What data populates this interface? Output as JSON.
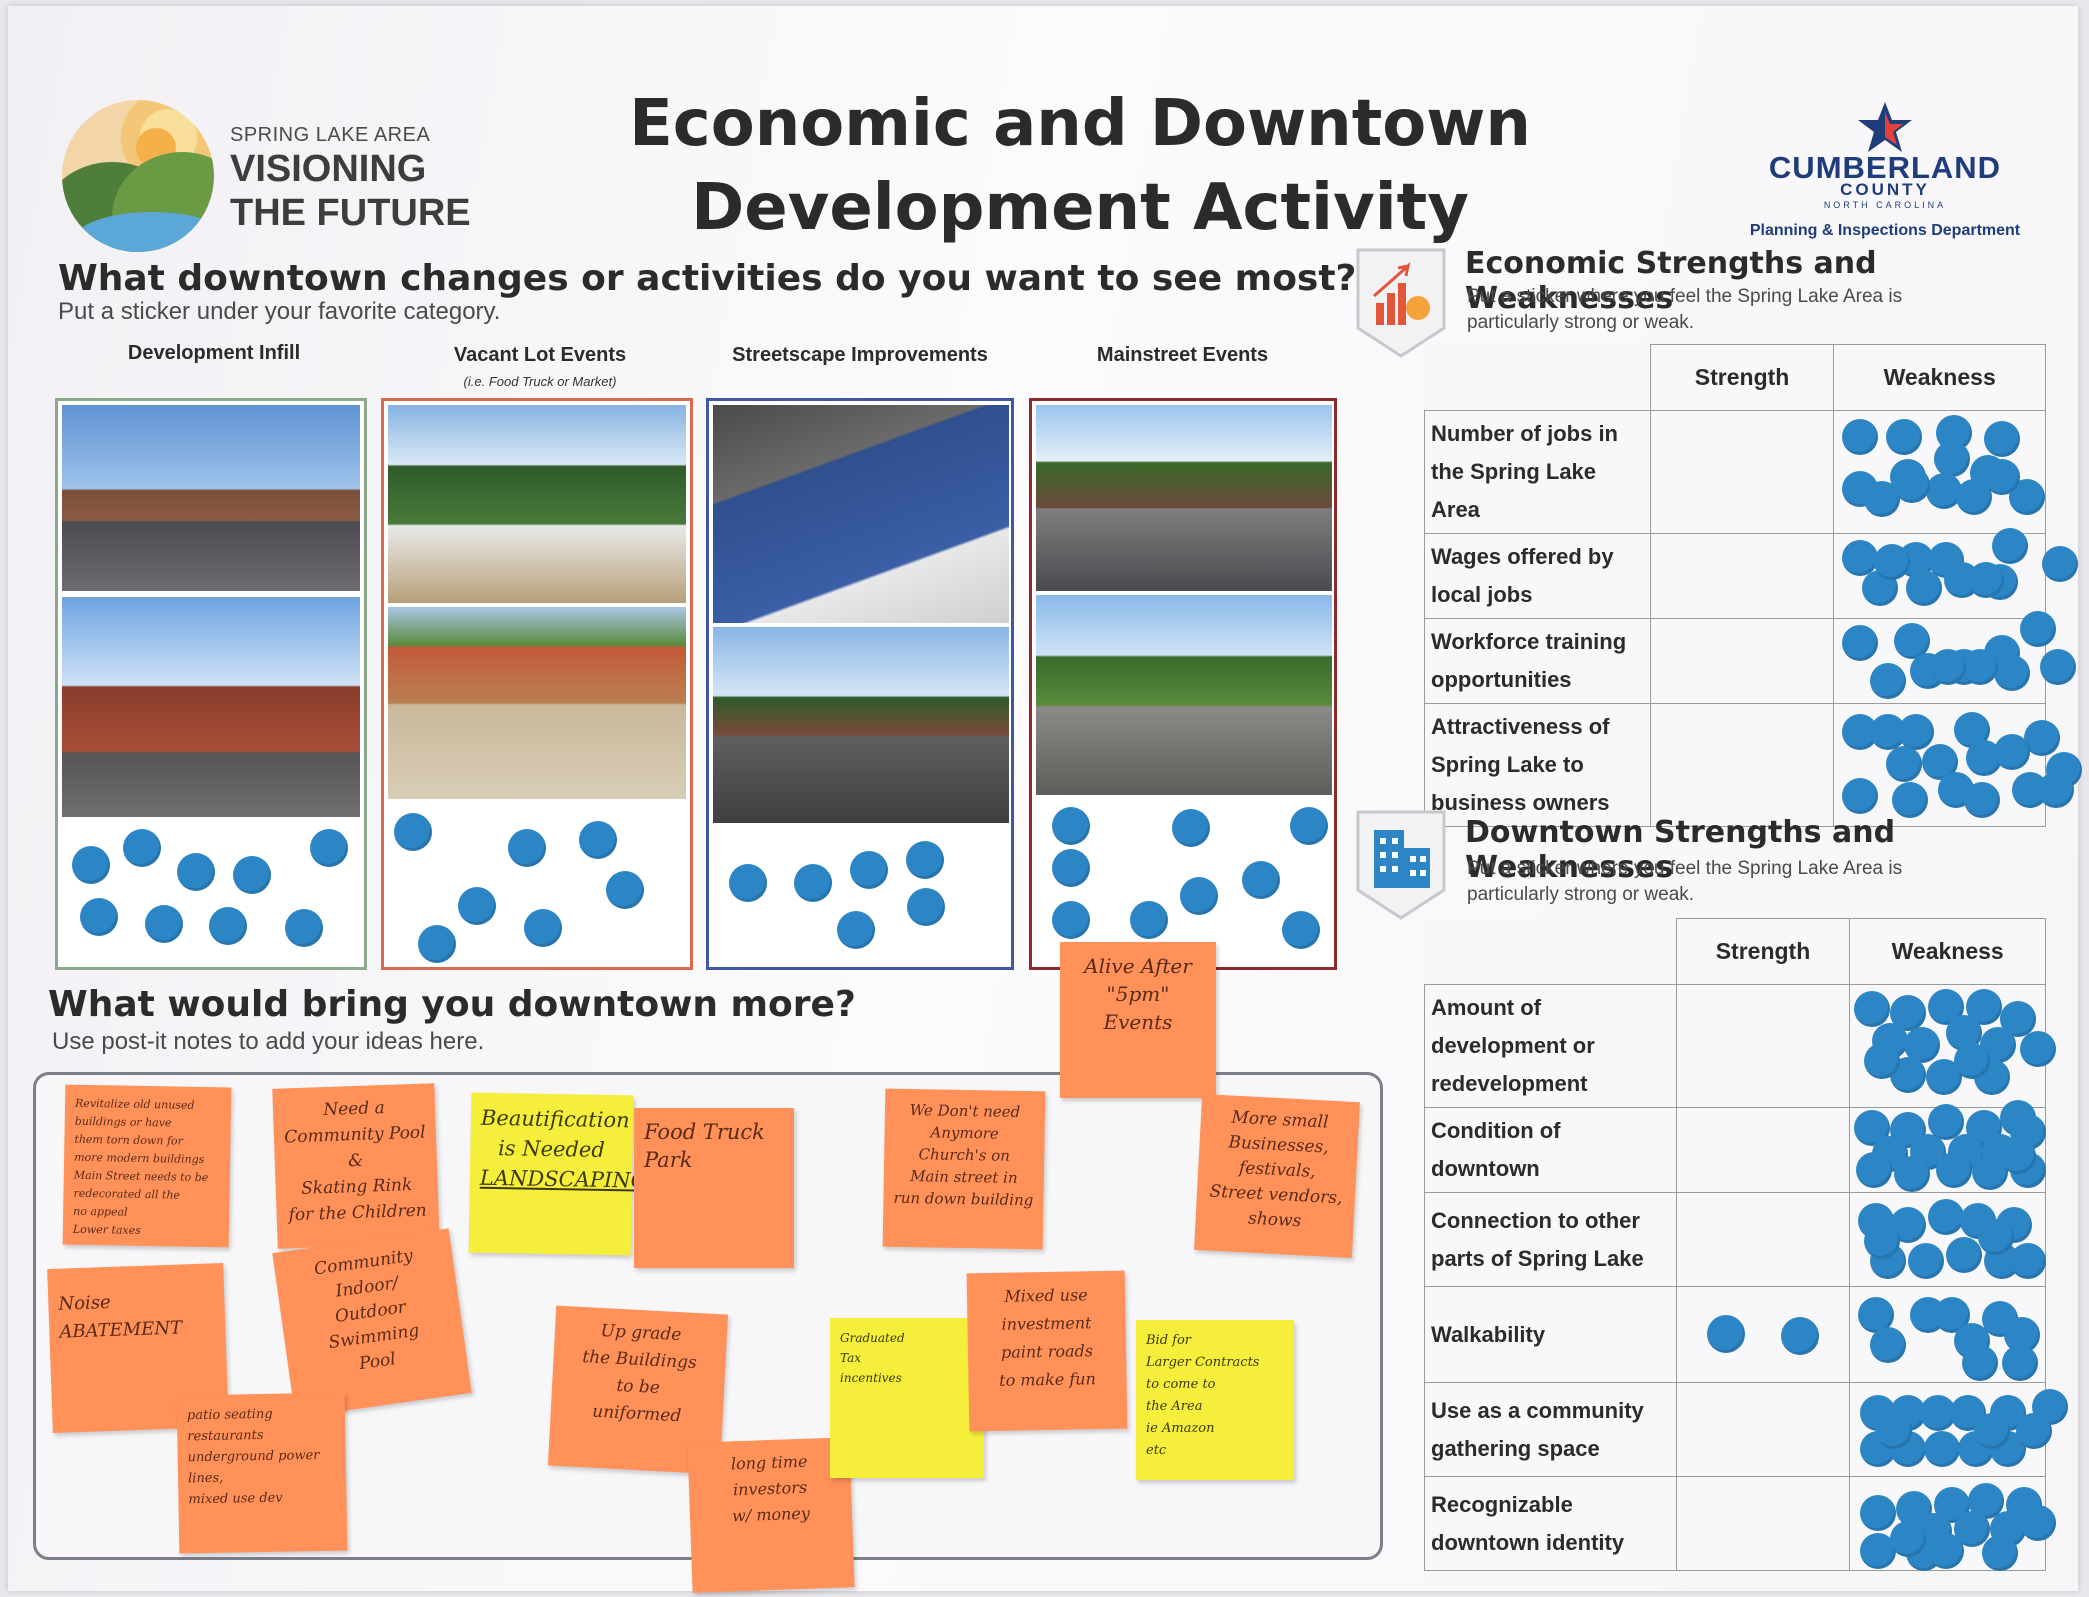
{
  "header": {
    "logo_small": "SPRING LAKE AREA",
    "logo_line1": "VISIONING",
    "logo_line2": "THE FUTURE",
    "title_line1": "Economic and Downtown",
    "title_line2": "Development Activity",
    "county_name": "CUMBERLAND",
    "county_word": "COUNTY",
    "county_state": "NORTH CAROLINA",
    "county_dept": "Planning & Inspections Department"
  },
  "downtown_changes": {
    "question": "What downtown changes or activities do you want to see most?",
    "instruction": "Put a sticker under your favorite category.",
    "categories": [
      {
        "label": "Development Infill",
        "note": "",
        "border": "#8aa88a",
        "votes": 9
      },
      {
        "label": "Vacant Lot Events",
        "note": "(i.e. Food Truck or Market)",
        "border": "#d96a4e",
        "votes": 9
      },
      {
        "label": "Streetscape Improvements",
        "note": "",
        "border": "#3f58a3",
        "votes": 7
      },
      {
        "label": "Mainstreet Events",
        "note": "",
        "border": "#8e2a2a",
        "votes": 11
      }
    ]
  },
  "economic": {
    "title": "Economic Strengths and Weaknesses",
    "subtitle_line1": "Put a sticker where you feel the Spring Lake Area is",
    "subtitle_line2": "particularly strong or weak.",
    "col_strength": "Strength",
    "col_weakness": "Weakness",
    "rows": [
      {
        "label_lines": [
          "Number of jobs in",
          "the Spring Lake",
          "Area"
        ],
        "strength": 0,
        "weakness": 14
      },
      {
        "label_lines": [
          "Wages offered by",
          "local jobs"
        ],
        "strength": 0,
        "weakness": 11
      },
      {
        "label_lines": [
          "Workforce training",
          "opportunities"
        ],
        "strength": 0,
        "weakness": 11
      },
      {
        "label_lines": [
          "Attractiveness of",
          "Spring Lake to",
          "business owners"
        ],
        "strength": 0,
        "weakness": 16
      }
    ]
  },
  "downtown": {
    "title": "Downtown Strengths and Weaknesses",
    "subtitle_line1": "Put a sticker where you feel the Spring Lake Area is",
    "subtitle_line2": "particularly strong or weak.",
    "col_strength": "Strength",
    "col_weakness": "Weakness",
    "rows": [
      {
        "label_lines": [
          "Amount of",
          "development or",
          "redevelopment"
        ],
        "strength": 0,
        "weakness": 15
      },
      {
        "label_lines": [
          "Condition of",
          "downtown"
        ],
        "strength": 0,
        "weakness": 16
      },
      {
        "label_lines": [
          "Connection to other",
          "parts of Spring Lake"
        ],
        "strength": 0,
        "weakness": 12
      },
      {
        "label_lines": [
          "Walkability"
        ],
        "strength": 2,
        "weakness": 9
      },
      {
        "label_lines": [
          "Use as a community",
          "gathering space"
        ],
        "strength": 0,
        "weakness": 14
      },
      {
        "label_lines": [
          "Recognizable",
          "downtown identity"
        ],
        "strength": 0,
        "weakness": 14
      }
    ]
  },
  "ideas": {
    "question": "What would bring you downtown more?",
    "instruction": "Use post-it notes to add your ideas here.",
    "notes": [
      {
        "color": "orange",
        "lines": [
          "Revitalize old unused",
          "buildings or have",
          "them torn down for",
          "more modern buildings",
          "Main Street needs to be",
          "redecorated all the",
          "no appeal",
          "Lower taxes"
        ]
      },
      {
        "color": "orange",
        "lines": [
          "Need a",
          "Community Pool",
          "&",
          "Skating Rink",
          "for the Children"
        ]
      },
      {
        "color": "yellow",
        "lines": [
          "Beautification",
          "is Needed",
          "LANDSCAPING"
        ]
      },
      {
        "color": "orange",
        "lines": [
          "Food Truck",
          "Park"
        ]
      },
      {
        "color": "orange",
        "lines": [
          "We Don't need",
          "Anymore",
          "Church's on",
          "Main street in",
          "run down building"
        ]
      },
      {
        "color": "orange",
        "lines": [
          "Alive After",
          "\"5pm\"",
          "Events"
        ]
      },
      {
        "color": "orange",
        "lines": [
          "More small",
          "Businesses,",
          "festivals,",
          "Street vendors,",
          "shows"
        ]
      },
      {
        "color": "orange",
        "lines": [
          "Noise",
          "ABATEMENT"
        ]
      },
      {
        "color": "orange",
        "lines": [
          "Community",
          "Indoor/",
          "Outdoor",
          "Swimming",
          "Pool"
        ]
      },
      {
        "color": "orange",
        "lines": [
          "patio seating",
          "restaurants",
          "underground power",
          "lines,",
          "mixed use dev"
        ]
      },
      {
        "color": "orange",
        "lines": [
          "Up grade",
          "the Buildings",
          "to be",
          "uniformed"
        ]
      },
      {
        "color": "orange",
        "lines": [
          "long time",
          "investors",
          "w/ money"
        ]
      },
      {
        "color": "yellow",
        "lines": [
          "Graduated",
          "Tax",
          "incentives"
        ]
      },
      {
        "color": "orange",
        "lines": [
          "Mixed use",
          "investment",
          "paint roads",
          "to make fun"
        ]
      },
      {
        "color": "yellow",
        "lines": [
          "Bid for",
          "Larger Contracts",
          "to come to",
          "the Area",
          "ie Amazon",
          "etc"
        ]
      }
    ]
  },
  "colors": {
    "sticker": "#2c86c6",
    "note_orange": "#ff9159",
    "note_yellow": "#f5ef3b",
    "county_blue": "#1f3d7a"
  }
}
